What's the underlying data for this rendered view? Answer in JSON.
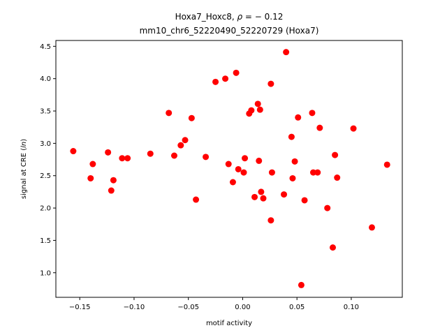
{
  "chart_data": {
    "type": "scatter",
    "title_line1_prefix": "Hoxa7_Hoxc8, ",
    "title_line1_rho": "ρ",
    "title_line1_suffix": " = − 0.12",
    "title_line2": "mm10_chr6_52220490_52220729 (Hoxa7)",
    "xlabel": "motif activity",
    "ylabel_prefix": "signal at CRE (",
    "ylabel_italic": "ln",
    "ylabel_suffix": ")",
    "xlim": [
      -0.172,
      0.147
    ],
    "ylim": [
      0.62,
      4.59
    ],
    "xticks": [
      -0.15,
      -0.1,
      -0.05,
      0.0,
      0.05,
      0.1
    ],
    "xtick_labels": [
      "−0.15",
      "−0.10",
      "−0.05",
      "0.00",
      "0.05",
      "0.10"
    ],
    "yticks": [
      1.0,
      1.5,
      2.0,
      2.5,
      3.0,
      3.5,
      4.0,
      4.5
    ],
    "ytick_labels": [
      "1.0",
      "1.5",
      "2.0",
      "2.5",
      "3.0",
      "3.5",
      "4.0",
      "4.5"
    ],
    "marker_color": "#ff0000",
    "grid": false,
    "points": [
      {
        "x": -0.156,
        "y": 2.88
      },
      {
        "x": -0.14,
        "y": 2.46
      },
      {
        "x": -0.138,
        "y": 2.68
      },
      {
        "x": -0.124,
        "y": 2.86
      },
      {
        "x": -0.121,
        "y": 2.27
      },
      {
        "x": -0.119,
        "y": 2.43
      },
      {
        "x": -0.111,
        "y": 2.77
      },
      {
        "x": -0.106,
        "y": 2.77
      },
      {
        "x": -0.085,
        "y": 2.84
      },
      {
        "x": -0.068,
        "y": 3.47
      },
      {
        "x": -0.063,
        "y": 2.81
      },
      {
        "x": -0.057,
        "y": 2.97
      },
      {
        "x": -0.053,
        "y": 3.05
      },
      {
        "x": -0.047,
        "y": 3.39
      },
      {
        "x": -0.043,
        "y": 2.13
      },
      {
        "x": -0.034,
        "y": 2.79
      },
      {
        "x": -0.025,
        "y": 3.95
      },
      {
        "x": -0.016,
        "y": 4.0
      },
      {
        "x": -0.013,
        "y": 2.68
      },
      {
        "x": -0.009,
        "y": 2.4
      },
      {
        "x": -0.006,
        "y": 4.09
      },
      {
        "x": -0.004,
        "y": 2.6
      },
      {
        "x": 0.001,
        "y": 2.55
      },
      {
        "x": 0.002,
        "y": 2.77
      },
      {
        "x": 0.006,
        "y": 3.46
      },
      {
        "x": 0.008,
        "y": 3.51
      },
      {
        "x": 0.011,
        "y": 2.17
      },
      {
        "x": 0.014,
        "y": 3.61
      },
      {
        "x": 0.015,
        "y": 2.73
      },
      {
        "x": 0.016,
        "y": 3.52
      },
      {
        "x": 0.017,
        "y": 2.25
      },
      {
        "x": 0.019,
        "y": 2.15
      },
      {
        "x": 0.026,
        "y": 3.92
      },
      {
        "x": 0.026,
        "y": 1.81
      },
      {
        "x": 0.027,
        "y": 2.55
      },
      {
        "x": 0.038,
        "y": 2.21
      },
      {
        "x": 0.04,
        "y": 4.41
      },
      {
        "x": 0.045,
        "y": 3.1
      },
      {
        "x": 0.046,
        "y": 2.46
      },
      {
        "x": 0.048,
        "y": 2.72
      },
      {
        "x": 0.051,
        "y": 3.4
      },
      {
        "x": 0.054,
        "y": 0.81
      },
      {
        "x": 0.057,
        "y": 2.12
      },
      {
        "x": 0.064,
        "y": 3.47
      },
      {
        "x": 0.065,
        "y": 2.55
      },
      {
        "x": 0.069,
        "y": 2.55
      },
      {
        "x": 0.071,
        "y": 3.24
      },
      {
        "x": 0.078,
        "y": 2.0
      },
      {
        "x": 0.083,
        "y": 1.39
      },
      {
        "x": 0.085,
        "y": 2.82
      },
      {
        "x": 0.087,
        "y": 2.47
      },
      {
        "x": 0.102,
        "y": 3.23
      },
      {
        "x": 0.119,
        "y": 1.7
      },
      {
        "x": 0.133,
        "y": 2.67
      }
    ]
  }
}
